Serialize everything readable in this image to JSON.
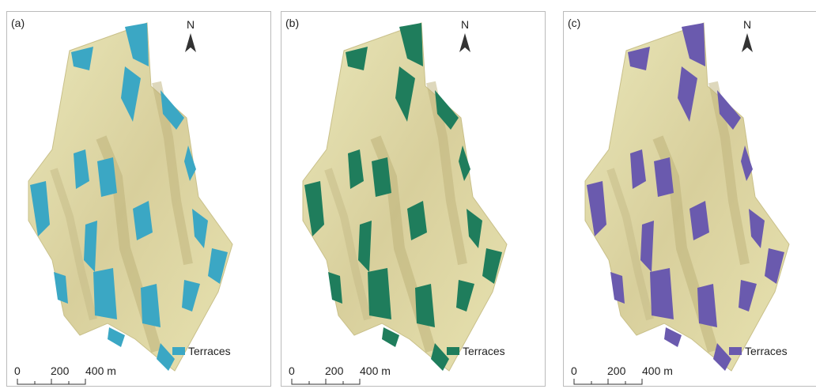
{
  "panels": [
    {
      "label": "(a)",
      "north": "N",
      "legend": "Terraces",
      "terrace_color": "#3ba7c4",
      "scale": [
        "0",
        "200",
        "400 m"
      ]
    },
    {
      "label": "(b)",
      "north": "N",
      "legend": "Terraces",
      "terrace_color": "#1f7d5c",
      "scale": [
        "0",
        "200",
        "400 m"
      ]
    },
    {
      "label": "(c)",
      "north": "N",
      "legend": "Terraces",
      "terrace_color": "#6a5aae",
      "scale": [
        "0",
        "200",
        "400 m"
      ]
    }
  ]
}
